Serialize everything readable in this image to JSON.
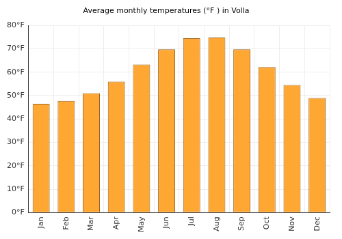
{
  "chart_data": {
    "type": "bar",
    "title": "Average monthly temperatures (°F ) in Volla",
    "categories": [
      "Jan",
      "Feb",
      "Mar",
      "Apr",
      "May",
      "Jun",
      "Jul",
      "Aug",
      "Sep",
      "Oct",
      "Nov",
      "Dec"
    ],
    "values": [
      46.5,
      47.7,
      51.0,
      56.0,
      63.3,
      69.8,
      74.5,
      74.8,
      69.8,
      62.2,
      54.5,
      49.0
    ],
    "color": "#ffa733",
    "ylim": [
      0,
      80
    ],
    "yticks": [
      {
        "value": 0,
        "label": "0°F"
      },
      {
        "value": 10,
        "label": "10°F"
      },
      {
        "value": 20,
        "label": "20°F"
      },
      {
        "value": 30,
        "label": "30°F"
      },
      {
        "value": 40,
        "label": "40°F"
      },
      {
        "value": 50,
        "label": "50°F"
      },
      {
        "value": 60,
        "label": "60°F"
      },
      {
        "value": 70,
        "label": "70°F"
      },
      {
        "value": 80,
        "label": "80°F"
      }
    ],
    "grid": true
  }
}
